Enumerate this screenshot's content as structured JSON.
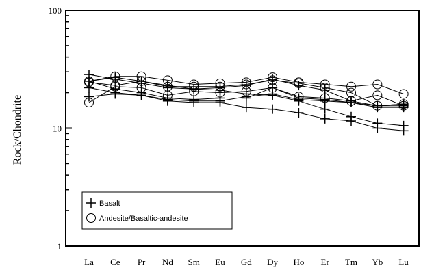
{
  "chart_data": {
    "type": "line",
    "title": "",
    "xlabel": "",
    "ylabel": "Rock/Chondrite",
    "yscale": "log",
    "ylim": [
      1,
      100
    ],
    "y_ticks": [
      "100",
      "10",
      "1"
    ],
    "categories": [
      "La",
      "Ce",
      "Pr",
      "Nd",
      "Sm",
      "Eu",
      "Gd",
      "Dy",
      "Ho",
      "Er",
      "Tm",
      "Yb",
      "Lu"
    ],
    "grid": false,
    "legend_position": "bottom-left",
    "legend": [
      {
        "label": "Basalt",
        "marker": "plus"
      },
      {
        "label": "Andesite/Basaltic-andesite",
        "marker": "circle"
      }
    ],
    "series": [
      {
        "marker": "plus",
        "values": [
          28.5,
          26.0,
          24.0,
          22.0,
          21.5,
          21.0,
          19.5,
          19.0,
          17.0,
          14.5,
          12.5,
          11.0,
          10.5
        ]
      },
      {
        "marker": "plus",
        "values": [
          22.0,
          20.0,
          19.0,
          17.0,
          16.5,
          16.5,
          15.0,
          14.5,
          13.5,
          12.0,
          11.5,
          10.0,
          9.5
        ]
      },
      {
        "marker": "plus",
        "values": [
          25.0,
          21.5,
          20.0,
          18.0,
          17.5,
          18.0,
          18.0,
          22.0,
          18.0,
          17.5,
          16.5,
          15.0,
          15.0
        ]
      },
      {
        "marker": "plus",
        "values": [
          25.0,
          27.0,
          25.0,
          23.0,
          21.5,
          22.0,
          23.0,
          26.0,
          23.0,
          21.0,
          17.0,
          15.5,
          15.5
        ]
      },
      {
        "marker": "plus",
        "values": [
          18.5,
          19.5,
          19.0,
          17.5,
          17.0,
          17.0,
          18.5,
          19.5,
          17.5,
          17.0,
          16.5,
          15.5,
          16.0
        ]
      },
      {
        "marker": "circle",
        "values": [
          25.0,
          27.5,
          27.5,
          25.5,
          23.5,
          24.0,
          24.5,
          27.0,
          24.5,
          23.5,
          22.5,
          23.5,
          19.5
        ]
      },
      {
        "marker": "circle",
        "values": [
          16.5,
          22.5,
          22.0,
          19.0,
          20.5,
          20.0,
          20.5,
          22.0,
          18.5,
          18.0,
          17.0,
          19.0,
          15.5
        ]
      },
      {
        "marker": "circle",
        "values": [
          24.5,
          23.0,
          25.0,
          22.5,
          22.5,
          22.5,
          23.5,
          25.5,
          24.0,
          22.0,
          20.0,
          15.5,
          16.0
        ]
      }
    ]
  }
}
